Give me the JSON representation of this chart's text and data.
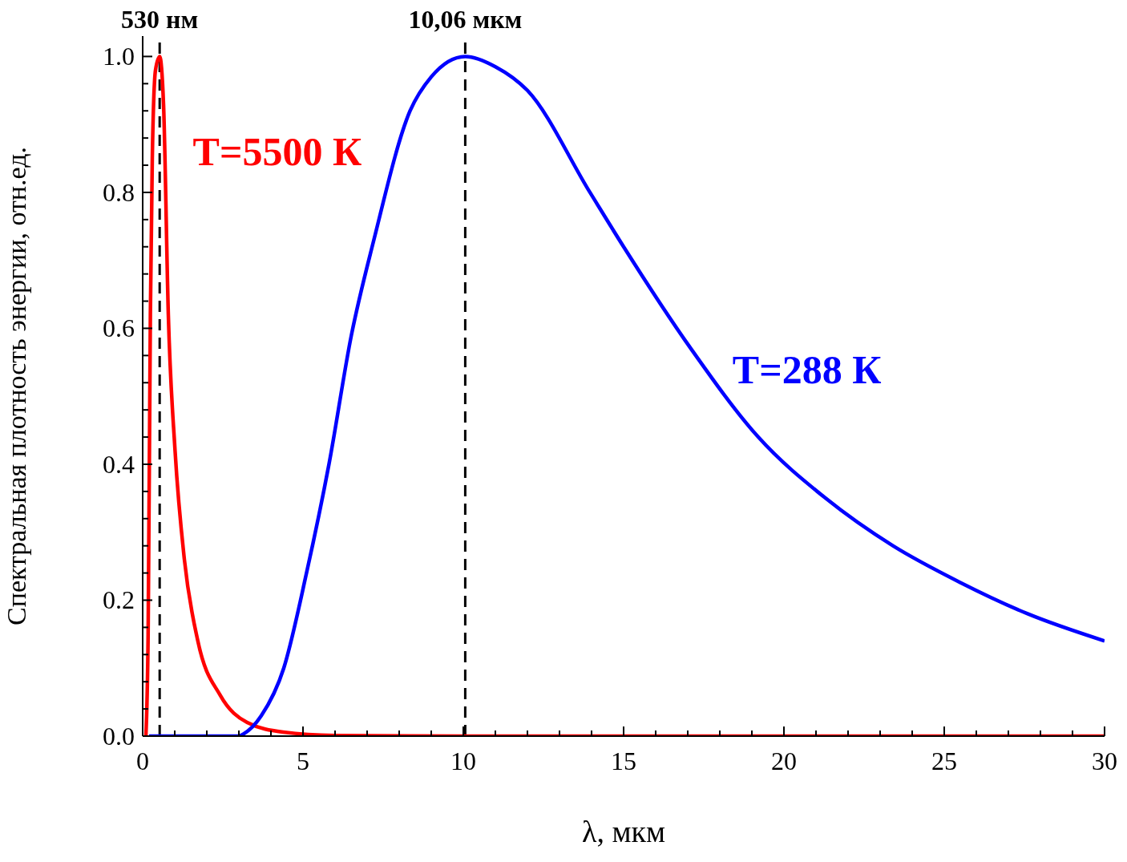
{
  "chart_data": {
    "type": "line",
    "xlabel": "λ, мкм",
    "ylabel": "Спектральная плотность энергии, отн.ед.",
    "xlim": [
      0,
      30
    ],
    "xticks": [
      0,
      {
        "value": 1,
        "label": null
      },
      {
        "value": 2,
        "label": null
      },
      {
        "value": 3,
        "label": null
      },
      {
        "value": 4,
        "label": null
      },
      5,
      {
        "value": 6,
        "label": null
      },
      {
        "value": 7,
        "label": null
      },
      {
        "value": 8,
        "label": null
      },
      {
        "value": 9,
        "label": null
      },
      10,
      {
        "value": 11,
        "label": null
      },
      {
        "value": 12,
        "label": null
      },
      {
        "value": 13,
        "label": null
      },
      {
        "value": 14,
        "label": null
      },
      15,
      {
        "value": 16,
        "label": null
      },
      {
        "value": 17,
        "label": null
      },
      {
        "value": 18,
        "label": null
      },
      {
        "value": 19,
        "label": null
      },
      20,
      {
        "value": 21,
        "label": null
      },
      {
        "value": 22,
        "label": null
      },
      {
        "value": 23,
        "label": null
      },
      {
        "value": 24,
        "label": null
      },
      25,
      {
        "value": 26,
        "label": null
      },
      {
        "value": 27,
        "label": null
      },
      {
        "value": 28,
        "label": null
      },
      {
        "value": 29,
        "label": null
      },
      30
    ],
    "ylim": [
      0,
      1.03
    ],
    "yticks": [
      {
        "value": 0,
        "label": "0.0"
      },
      {
        "value": 0.04,
        "label": null
      },
      {
        "value": 0.08,
        "label": null
      },
      {
        "value": 0.12,
        "label": null
      },
      {
        "value": 0.16,
        "label": null
      },
      {
        "value": 0.2,
        "label": "0.2"
      },
      {
        "value": 0.24,
        "label": null
      },
      {
        "value": 0.28,
        "label": null
      },
      {
        "value": 0.32,
        "label": null
      },
      {
        "value": 0.36,
        "label": null
      },
      {
        "value": 0.4,
        "label": "0.4"
      },
      {
        "value": 0.44,
        "label": null
      },
      {
        "value": 0.48,
        "label": null
      },
      {
        "value": 0.52,
        "label": null
      },
      {
        "value": 0.56,
        "label": null
      },
      {
        "value": 0.6,
        "label": "0.6"
      },
      {
        "value": 0.64,
        "label": null
      },
      {
        "value": 0.68,
        "label": null
      },
      {
        "value": 0.72,
        "label": null
      },
      {
        "value": 0.76,
        "label": null
      },
      {
        "value": 0.8,
        "label": "0.8"
      },
      {
        "value": 0.84,
        "label": null
      },
      {
        "value": 0.88,
        "label": null
      },
      {
        "value": 0.92,
        "label": null
      },
      {
        "value": 0.96,
        "label": null
      },
      {
        "value": 1.0,
        "label": "1.0"
      }
    ],
    "legend": false,
    "marker": "none",
    "line_style": "solid",
    "series": [
      {
        "name": "T=5500 К",
        "color": "#ff0000",
        "x": [
          0.1,
          0.17,
          0.24,
          0.3,
          0.4,
          0.53,
          0.65,
          0.8,
          1.01,
          1.3,
          1.72,
          2.42,
          3.26,
          4.38,
          6,
          10,
          20,
          30
        ],
        "values": [
          0,
          0.15,
          0.62,
          0.85,
          0.98,
          1.0,
          0.93,
          0.62,
          0.42,
          0.26,
          0.14,
          0.06,
          0.02,
          0.006,
          0.001,
          0,
          0,
          0
        ]
      },
      {
        "name": "T=288 К",
        "color": "#0000ff",
        "x": [
          0.2,
          3,
          3.14,
          3.7,
          4.4,
          5.11,
          5.81,
          6.51,
          7.21,
          8.34,
          9,
          10.06,
          11,
          12,
          13.95,
          15,
          17.1,
          19.2,
          21.3,
          23.4,
          25.5,
          27.6,
          30
        ],
        "values": [
          0,
          0,
          0.003,
          0.03,
          0.1,
          0.24,
          0.4,
          0.59,
          0.73,
          0.92,
          0.97,
          1.0,
          0.985,
          0.95,
          0.8,
          0.72,
          0.57,
          0.44,
          0.35,
          0.28,
          0.226,
          0.18,
          0.14
        ]
      }
    ],
    "ref_lines": [
      {
        "axis": "x",
        "value": 0.53,
        "label": "530 нм",
        "color": "#000000",
        "line_style": "dashed"
      },
      {
        "axis": "x",
        "value": 10.06,
        "label": "10,06 мкм",
        "color": "#000000",
        "line_style": "dashed"
      }
    ]
  }
}
